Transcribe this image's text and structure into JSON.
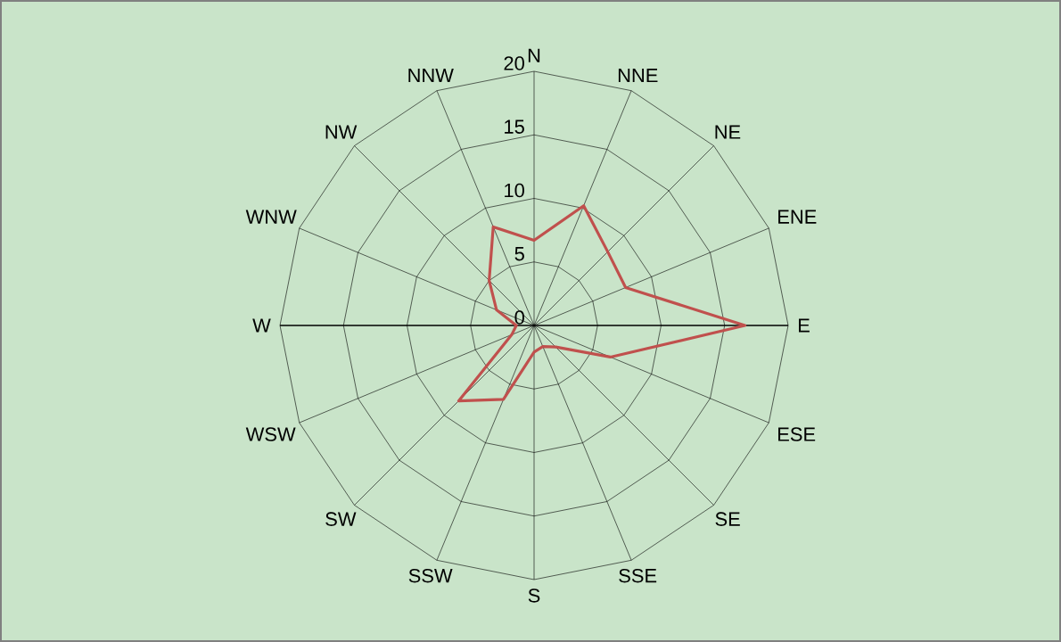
{
  "chart_data": {
    "type": "radar",
    "categories": [
      "N",
      "NNE",
      "NE",
      "ENE",
      "E",
      "ESE",
      "SE",
      "SSE",
      "S",
      "SSW",
      "SW",
      "WSW",
      "W",
      "WNW",
      "NW",
      "NNW"
    ],
    "series": [
      {
        "color": "#c0504d",
        "values": [
          6.7,
          10.2,
          8.2,
          7.8,
          16.6,
          6.5,
          2.4,
          1.8,
          2.1,
          6.3,
          8.4,
          1.9,
          1.4,
          3.2,
          5.0,
          8.4
        ]
      }
    ],
    "ylim": [
      0,
      20
    ],
    "yticks": [
      0,
      5,
      10,
      15,
      20
    ],
    "grid": true
  }
}
